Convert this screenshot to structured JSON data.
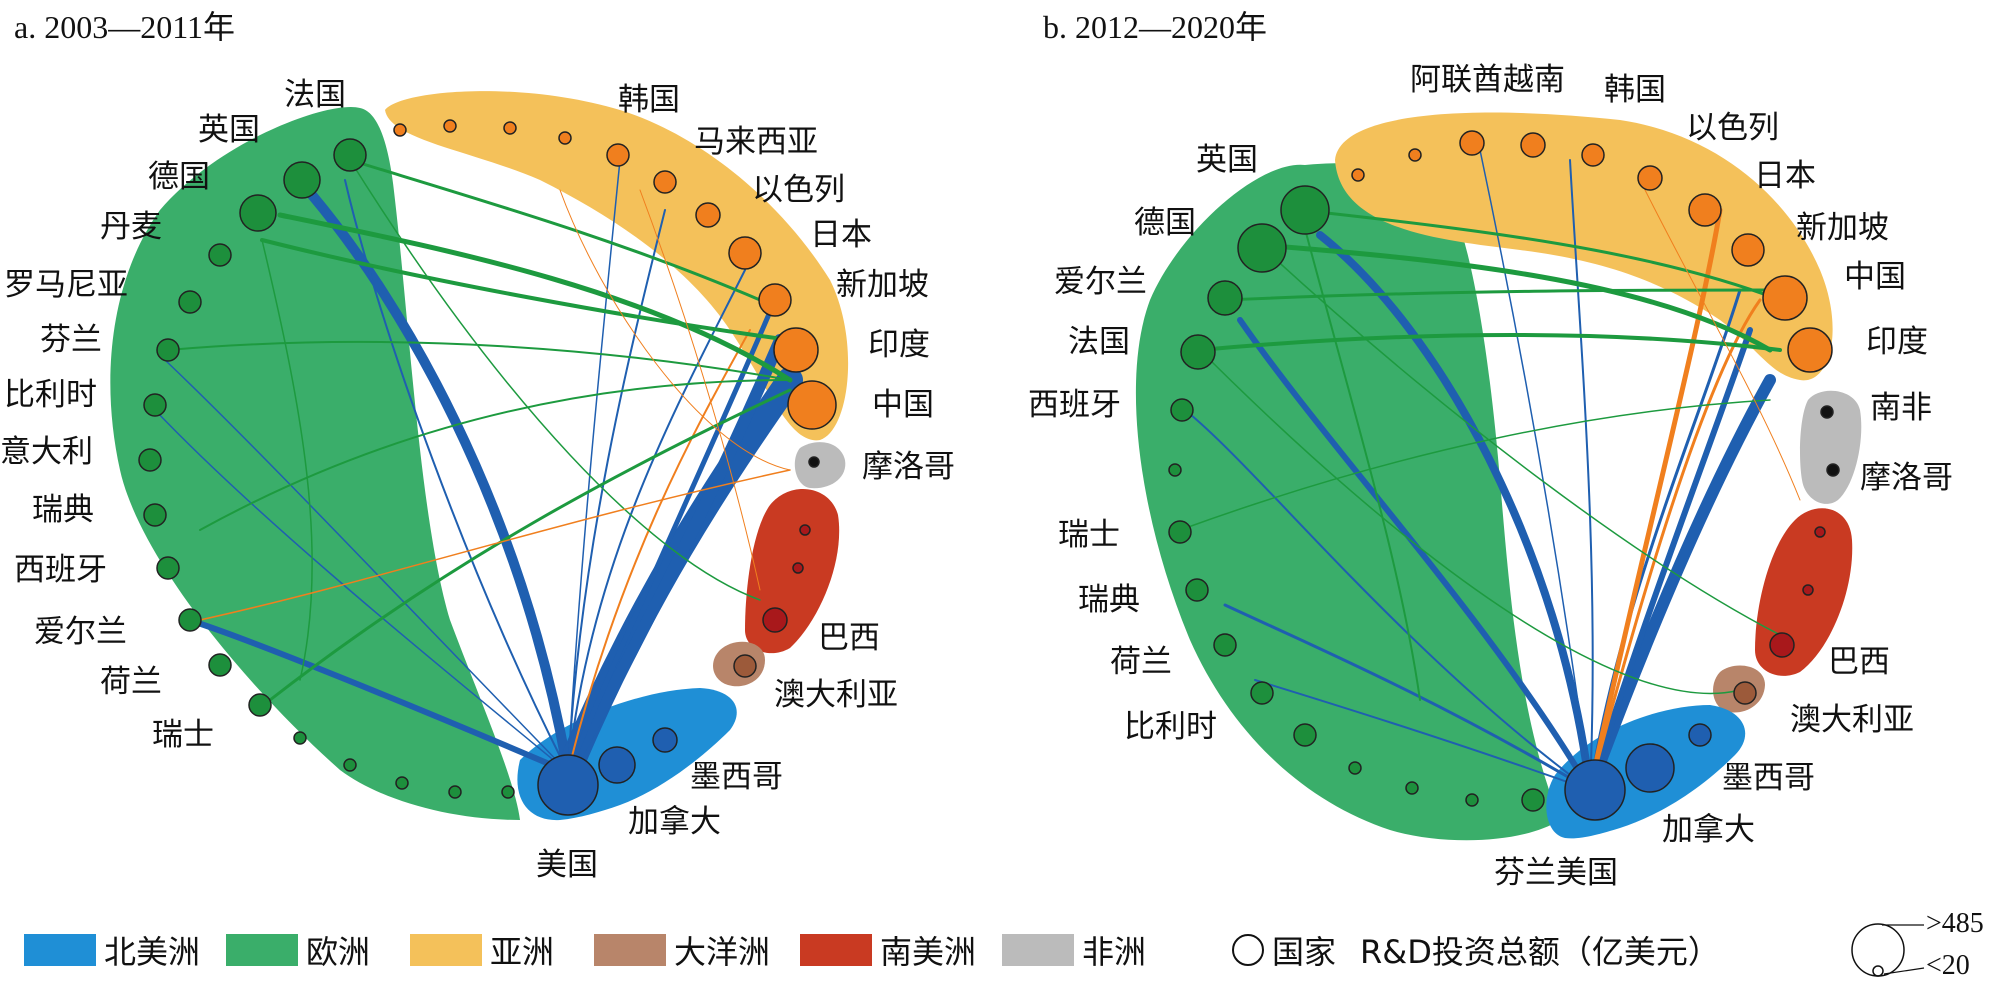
{
  "panels": [
    {
      "title": "a. 2003—2011年",
      "labels": {
        "fr": "法国",
        "uk": "英国",
        "de": "德国",
        "dk": "丹麦",
        "ro": "罗马尼亚",
        "fi": "芬兰",
        "be": "比利时",
        "it": "意大利",
        "se": "瑞典",
        "es": "西班牙",
        "ie": "爱尔兰",
        "nl": "荷兰",
        "ch": "瑞士",
        "kr": "韩国",
        "my": "马来西亚",
        "il": "以色列",
        "jp": "日本",
        "sg": "新加坡",
        "in": "印度",
        "cn": "中国",
        "ma": "摩洛哥",
        "br": "巴西",
        "au": "澳大利亚",
        "mx": "墨西哥",
        "ca": "加拿大",
        "us": "美国"
      }
    },
    {
      "title": "b. 2012—2020年",
      "labels": {
        "ae": "阿联酋",
        "vn": "越南",
        "kr": "韩国",
        "il": "以色列",
        "jp": "日本",
        "sg": "新加坡",
        "cn": "中国",
        "in": "印度",
        "za": "南非",
        "ma": "摩洛哥",
        "br": "巴西",
        "au": "澳大利亚",
        "mx": "墨西哥",
        "ca": "加拿大",
        "fi": "芬兰",
        "us": "美国",
        "uk": "英国",
        "de": "德国",
        "ie": "爱尔兰",
        "fr": "法国",
        "es": "西班牙",
        "ch": "瑞士",
        "se": "瑞典",
        "nl": "荷兰",
        "be": "比利时"
      }
    }
  ],
  "legend": {
    "regions": [
      {
        "label": "北美洲",
        "color": "#1f8fd6"
      },
      {
        "label": "欧洲",
        "color": "#3aae6a"
      },
      {
        "label": "亚洲",
        "color": "#f4c15a"
      },
      {
        "label": "大洋洲",
        "color": "#b8856a"
      },
      {
        "label": "南美洲",
        "color": "#c93a22"
      },
      {
        "label": "非洲",
        "color": "#bbbbbb"
      }
    ],
    "node_label": "国家",
    "size_title": "R&D投资总额（亿美元）",
    "size_max": ">485",
    "size_min": "<20"
  },
  "colors": {
    "north_america_node": "#1f5fb0",
    "europe_node": "#1d8f3c",
    "asia_node": "#f07f1e",
    "south_america_node": "#a8181b",
    "oceania_node": "#9c5a3a",
    "africa_node": "#111111",
    "link_blue": "#1f5fb0",
    "link_green": "#1d9a3f",
    "link_orange": "#f07f1e"
  }
}
